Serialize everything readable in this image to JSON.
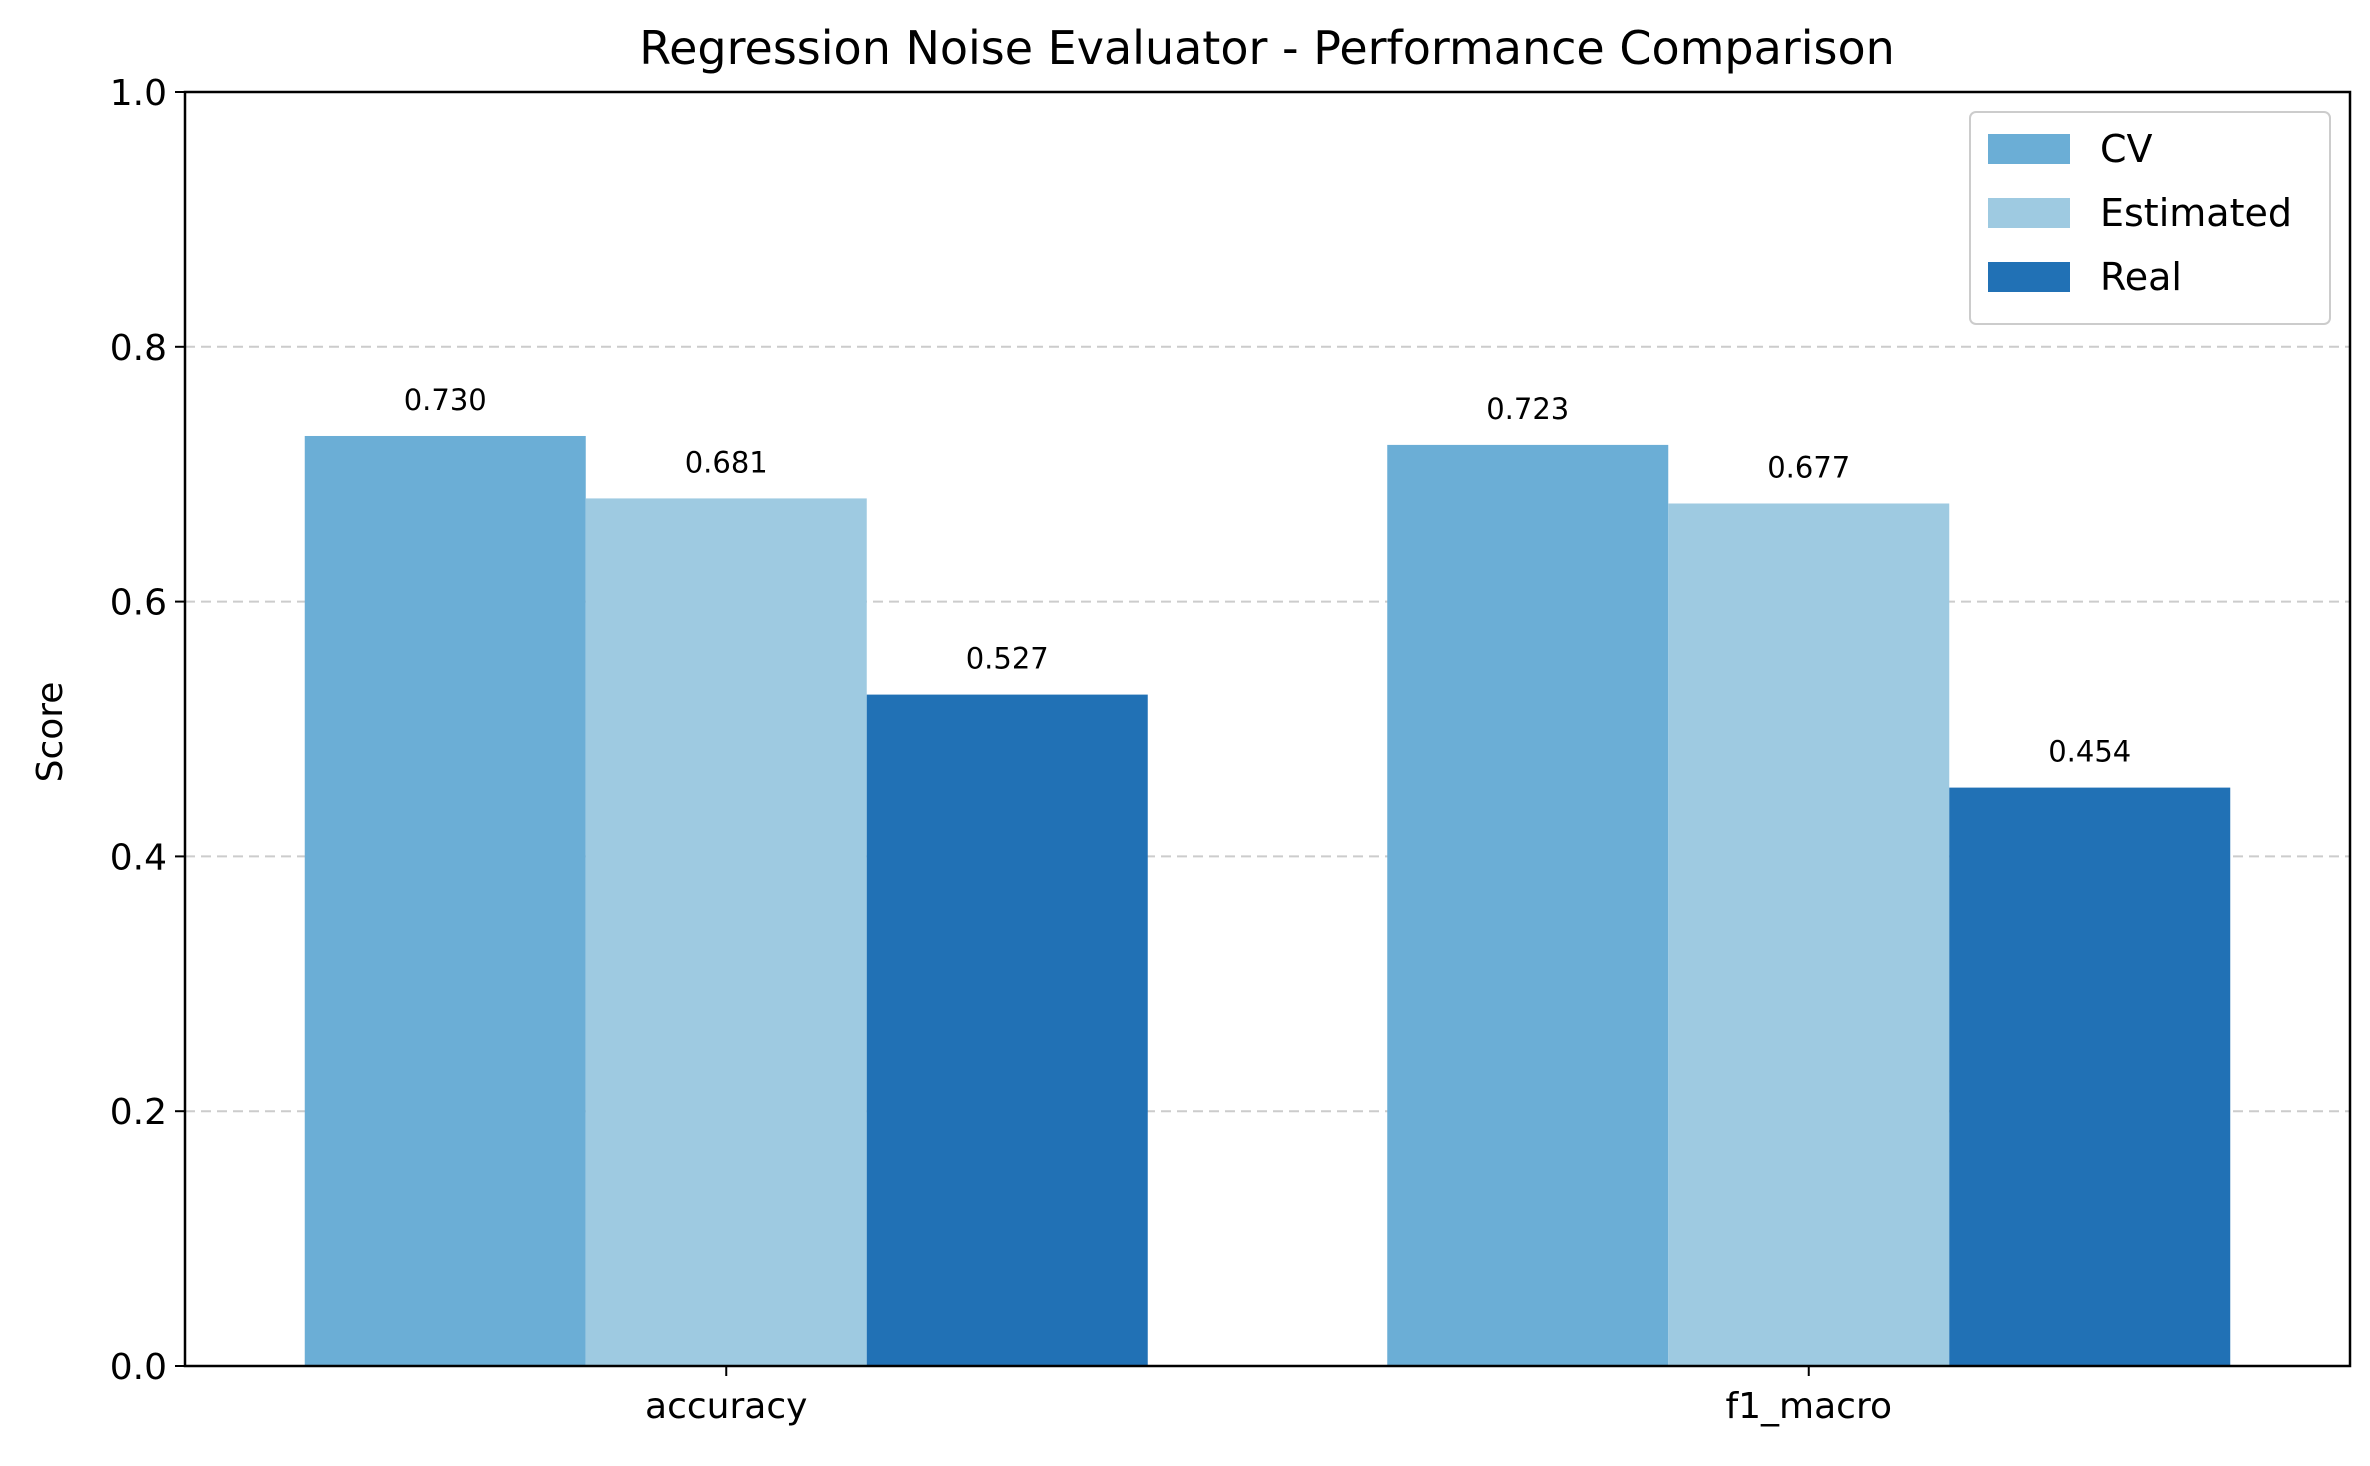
{
  "chart_data": {
    "type": "bar",
    "title": "Regression Noise Evaluator - Performance Comparison",
    "xlabel": "",
    "ylabel": "Score",
    "ylim": [
      0,
      1.0
    ],
    "yticks": [
      "0.0",
      "0.2",
      "0.4",
      "0.6",
      "0.8",
      "1.0"
    ],
    "categories": [
      "accuracy",
      "f1_macro"
    ],
    "series": [
      {
        "name": "CV",
        "values": [
          0.73,
          0.723
        ],
        "labels": [
          "0.730",
          "0.723"
        ],
        "color": "#6baed6"
      },
      {
        "name": "Estimated",
        "values": [
          0.681,
          0.677
        ],
        "labels": [
          "0.681",
          "0.677"
        ],
        "color": "#9ecae1"
      },
      {
        "name": "Real",
        "values": [
          0.527,
          0.454
        ],
        "labels": [
          "0.527",
          "0.454"
        ],
        "color": "#2171b5"
      }
    ],
    "grid": "y-dashed",
    "legend": "top-right"
  }
}
